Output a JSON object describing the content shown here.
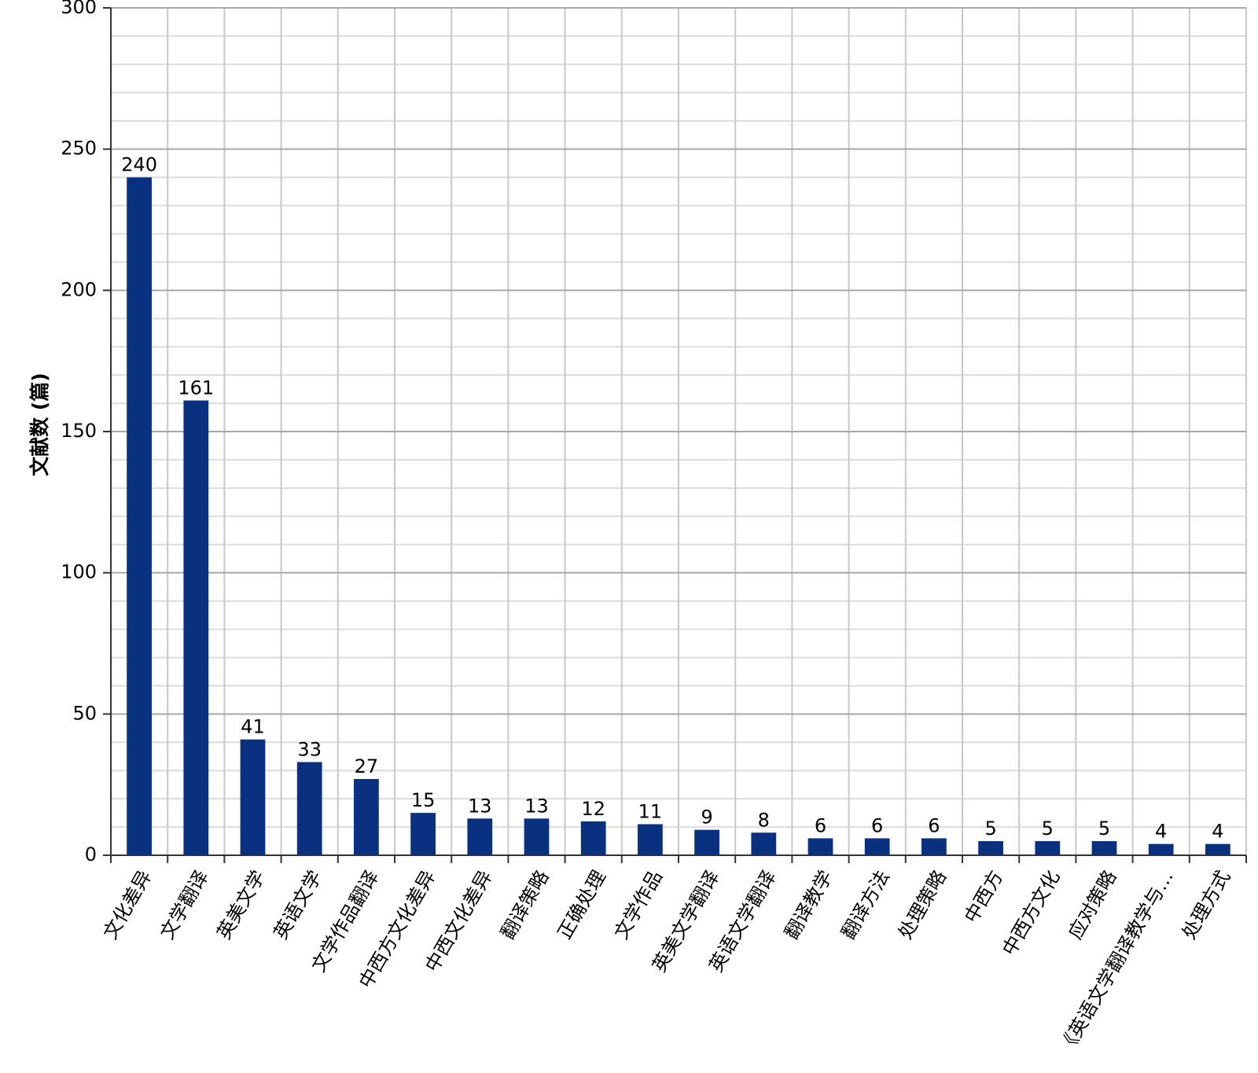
{
  "chart_data": {
    "type": "bar",
    "ylabel": "文献数 (篇)",
    "categories": [
      "文化差异",
      "文学翻译",
      "英美文学",
      "英语文学",
      "文学作品翻译",
      "中西方文化差异",
      "中西文化差异",
      "翻译策略",
      "正确处理",
      "文学作品",
      "英美文学翻译",
      "英语文学翻译",
      "翻译教学",
      "翻译方法",
      "处理策略",
      "中西方",
      "中西方文化",
      "应对策略",
      "《英语文学翻译教学与…",
      "处理方式"
    ],
    "values": [
      240,
      161,
      41,
      33,
      27,
      15,
      13,
      13,
      12,
      11,
      9,
      8,
      6,
      6,
      6,
      5,
      5,
      5,
      4,
      4
    ],
    "color": "#0a3180",
    "ylim": [
      0,
      300
    ],
    "yticks": [
      0,
      50,
      100,
      150,
      200,
      250,
      300
    ],
    "grid": true,
    "minor_grid": true,
    "show_value_labels": true
  }
}
